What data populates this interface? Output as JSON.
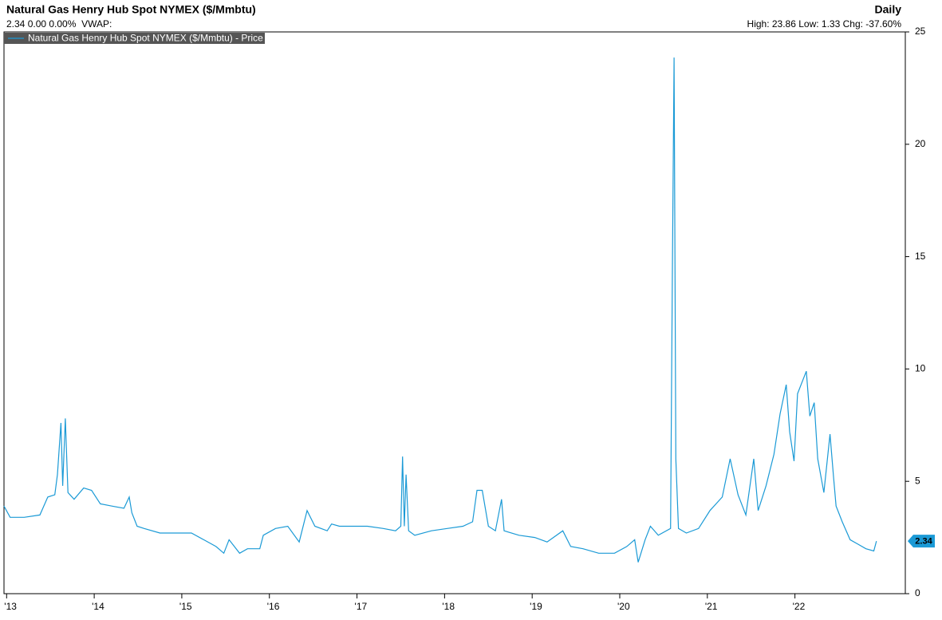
{
  "chart_data": {
    "type": "line",
    "title": "Natural Gas Henry Hub Spot NYMEX ($/Mmbtu)",
    "frequency": "Daily",
    "quote": "2.34 0.00 0.00%  VWAP:",
    "stats": "High: 23.86 Low: 1.33 Chg: -37.60%",
    "legend_position": "upper left",
    "last_value": 2.34,
    "x": [
      2012.97,
      2013.04,
      2013.2,
      2013.38,
      2013.47,
      2013.55,
      2013.58,
      2013.62,
      2013.64,
      2013.67,
      2013.7,
      2013.77,
      2013.88,
      2013.97,
      2014.07,
      2014.2,
      2014.34,
      2014.4,
      2014.43,
      2014.49,
      2014.57,
      2014.75,
      2014.93,
      2015.11,
      2015.25,
      2015.39,
      2015.48,
      2015.54,
      2015.66,
      2015.75,
      2015.89,
      2015.93,
      2016.07,
      2016.21,
      2016.34,
      2016.43,
      2016.52,
      2016.66,
      2016.71,
      2016.8,
      2016.93,
      2017.12,
      2017.3,
      2017.44,
      2017.5,
      2017.52,
      2017.54,
      2017.56,
      2017.59,
      2017.66,
      2017.85,
      2018.03,
      2018.21,
      2018.32,
      2018.37,
      2018.43,
      2018.5,
      2018.58,
      2018.65,
      2018.68,
      2018.85,
      2019.03,
      2019.17,
      2019.35,
      2019.44,
      2019.58,
      2019.76,
      2019.94,
      2020.08,
      2020.17,
      2020.21,
      2020.29,
      2020.35,
      2020.44,
      2020.58,
      2020.6,
      2020.62,
      2020.64,
      2020.67,
      2020.76,
      2020.9,
      2021.03,
      2021.17,
      2021.26,
      2021.35,
      2021.44,
      2021.53,
      2021.58,
      2021.67,
      2021.76,
      2021.83,
      2021.9,
      2021.94,
      2021.99,
      2022.03,
      2022.13,
      2022.17,
      2022.22,
      2022.26,
      2022.33,
      2022.4,
      2022.44,
      2022.47,
      2022.54,
      2022.63,
      2022.72,
      2022.81,
      2022.9,
      2022.93
    ],
    "series": [
      {
        "name": "Natural Gas Henry Hub Spot NYMEX ($/Mmbtu) - Price",
        "color": "#1b9ad6",
        "values": [
          3.9,
          3.4,
          3.4,
          3.5,
          4.3,
          4.4,
          5.3,
          7.6,
          4.8,
          7.8,
          4.5,
          4.2,
          4.7,
          4.6,
          4.0,
          3.9,
          3.8,
          4.3,
          3.6,
          3.0,
          2.9,
          2.7,
          2.7,
          2.7,
          2.4,
          2.1,
          1.8,
          2.4,
          1.8,
          2.0,
          2.0,
          2.6,
          2.9,
          3.0,
          2.3,
          3.7,
          3.0,
          2.8,
          3.1,
          3.0,
          3.0,
          3.0,
          2.9,
          2.8,
          3.0,
          6.1,
          3.0,
          5.3,
          2.8,
          2.6,
          2.8,
          2.9,
          3.0,
          3.2,
          4.6,
          4.6,
          3.0,
          2.8,
          4.2,
          2.8,
          2.6,
          2.5,
          2.3,
          2.8,
          2.1,
          2.0,
          1.8,
          1.8,
          2.1,
          2.4,
          1.4,
          2.4,
          3.0,
          2.6,
          2.9,
          14.0,
          23.86,
          6.0,
          2.9,
          2.7,
          2.9,
          3.7,
          4.3,
          6.0,
          4.4,
          3.5,
          6.0,
          3.7,
          4.8,
          6.2,
          8.0,
          9.3,
          7.2,
          5.9,
          8.9,
          9.9,
          7.9,
          8.5,
          6.0,
          4.5,
          7.1,
          5.2,
          3.9,
          3.2,
          2.4,
          2.2,
          2.0,
          1.9,
          2.34
        ]
      }
    ],
    "xlim": [
      2012.97,
      2023.26
    ],
    "xticks": [
      {
        "value": 2013,
        "label": "'13"
      },
      {
        "value": 2014,
        "label": "'14"
      },
      {
        "value": 2015,
        "label": "'15"
      },
      {
        "value": 2016,
        "label": "'16"
      },
      {
        "value": 2017,
        "label": "'17"
      },
      {
        "value": 2018,
        "label": "'18"
      },
      {
        "value": 2019,
        "label": "'19"
      },
      {
        "value": 2020,
        "label": "'20"
      },
      {
        "value": 2021,
        "label": "'21"
      },
      {
        "value": 2022,
        "label": "'22"
      }
    ],
    "ylim": [
      0,
      25
    ],
    "yticks": [
      0,
      5,
      10,
      15,
      20,
      25
    ]
  }
}
